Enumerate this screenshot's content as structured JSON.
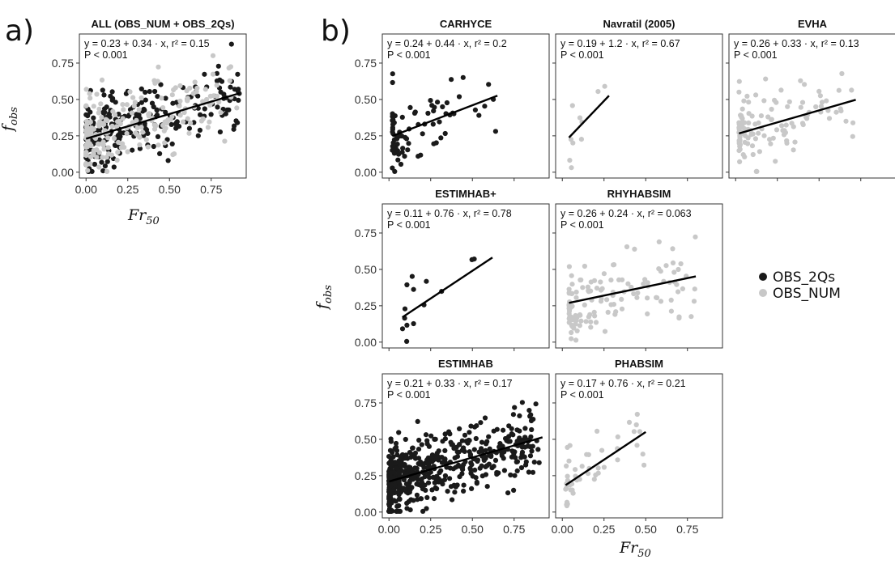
{
  "figure": {
    "label_a": "a)",
    "label_b": "b)",
    "x_label_main": "Fr",
    "x_label_sub": "50",
    "y_label_main": "f",
    "y_label_sub": "obs",
    "legend": [
      {
        "name": "OBS_2Qs",
        "color": "#1a1a1a"
      },
      {
        "name": "OBS_NUM",
        "color": "#c8c8c8"
      }
    ],
    "x_ticks": [
      "0.00",
      "0.25",
      "0.50",
      "0.75"
    ],
    "y_ticks": [
      "0.00",
      "0.25",
      "0.50",
      "0.75"
    ]
  },
  "chart_data": [
    {
      "type": "scatter",
      "title": "ALL (OBS_NUM + OBS_2Qs)",
      "eq_text": "y = 0.23 + 0.34 · x, r² = 0.15",
      "p_text": "P < 0.001",
      "fit": {
        "intercept": 0.23,
        "slope": 0.34,
        "x_range": [
          0.0,
          0.92
        ]
      },
      "xlim": [
        -0.04,
        0.96
      ],
      "ylim": [
        -0.04,
        0.95
      ],
      "series": [
        {
          "name": "OBS_2Qs",
          "n": 260,
          "color": "#1a1a1a"
        },
        {
          "name": "OBS_NUM",
          "n": 200,
          "color": "#c8c8c8"
        }
      ],
      "seed": 7
    },
    {
      "type": "scatter",
      "title": "CARHYCE",
      "eq_text": "y = 0.24 + 0.44 · x, r² = 0.2",
      "p_text": "P < 0.001",
      "fit": {
        "intercept": 0.24,
        "slope": 0.44,
        "x_range": [
          0.02,
          0.65
        ]
      },
      "xlim": [
        -0.04,
        0.96
      ],
      "ylim": [
        -0.04,
        0.95
      ],
      "series": [
        {
          "name": "OBS_2Qs",
          "n": 80,
          "color": "#1a1a1a"
        }
      ],
      "seed": 11
    },
    {
      "type": "scatter",
      "title": "Navratil (2005)",
      "eq_text": "y = 0.19 + 1.2 · x, r² = 0.67",
      "p_text": "P < 0.001",
      "fit": {
        "intercept": 0.19,
        "slope": 1.2,
        "x_range": [
          0.04,
          0.28
        ]
      },
      "xlim": [
        -0.04,
        0.96
      ],
      "ylim": [
        -0.04,
        0.95
      ],
      "series": [
        {
          "name": "OBS_NUM",
          "n": 10,
          "color": "#c8c8c8"
        }
      ],
      "seed": 13
    },
    {
      "type": "scatter",
      "title": "EVHA",
      "eq_text": "y = 0.26 + 0.33 · x, r² = 0.13",
      "p_text": "P < 0.001",
      "fit": {
        "intercept": 0.26,
        "slope": 0.33,
        "x_range": [
          0.02,
          0.72
        ]
      },
      "xlim": [
        -0.04,
        0.96
      ],
      "ylim": [
        -0.04,
        0.95
      ],
      "series": [
        {
          "name": "OBS_NUM",
          "n": 120,
          "color": "#c8c8c8"
        }
      ],
      "seed": 17
    },
    {
      "type": "scatter",
      "title": "ESTIMHAB+",
      "eq_text": "y = 0.11 + 0.76 · x, r² = 0.78",
      "p_text": "P < 0.001",
      "fit": {
        "intercept": 0.11,
        "slope": 0.76,
        "x_range": [
          0.08,
          0.62
        ]
      },
      "xlim": [
        -0.04,
        0.96
      ],
      "ylim": [
        -0.04,
        0.95
      ],
      "series": [
        {
          "name": "OBS_2Qs",
          "n": 14,
          "color": "#1a1a1a"
        }
      ],
      "seed": 19
    },
    {
      "type": "scatter",
      "title": "RHYHABSIM",
      "eq_text": "y = 0.26 + 0.24 · x, r² = 0.063",
      "p_text": "P < 0.001",
      "fit": {
        "intercept": 0.26,
        "slope": 0.24,
        "x_range": [
          0.04,
          0.8
        ]
      },
      "xlim": [
        -0.04,
        0.96
      ],
      "ylim": [
        -0.04,
        0.95
      ],
      "series": [
        {
          "name": "OBS_NUM",
          "n": 130,
          "color": "#c8c8c8"
        }
      ],
      "seed": 23
    },
    {
      "type": "scatter",
      "title": "ESTIMHAB",
      "eq_text": "y = 0.21 + 0.33 · x, r² = 0.17",
      "p_text": "P < 0.001",
      "fit": {
        "intercept": 0.21,
        "slope": 0.33,
        "x_range": [
          0.0,
          0.92
        ]
      },
      "xlim": [
        -0.04,
        0.96
      ],
      "ylim": [
        -0.04,
        0.95
      ],
      "series": [
        {
          "name": "OBS_2Qs",
          "n": 520,
          "color": "#1a1a1a"
        }
      ],
      "seed": 29
    },
    {
      "type": "scatter",
      "title": "PHABSIM",
      "eq_text": "y = 0.17 + 0.76 · x, r² = 0.21",
      "p_text": "P < 0.001",
      "fit": {
        "intercept": 0.17,
        "slope": 0.76,
        "x_range": [
          0.02,
          0.5
        ]
      },
      "xlim": [
        -0.04,
        0.96
      ],
      "ylim": [
        -0.04,
        0.95
      ],
      "series": [
        {
          "name": "OBS_NUM",
          "n": 45,
          "color": "#c8c8c8"
        }
      ],
      "seed": 31
    }
  ]
}
